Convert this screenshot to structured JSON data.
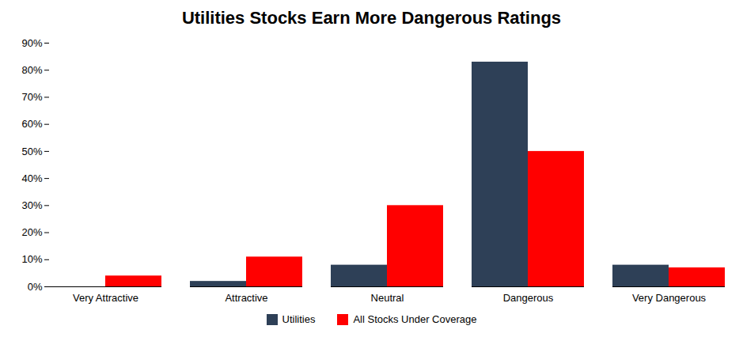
{
  "chart_data": {
    "type": "bar",
    "title": "Utilities Stocks Earn More Dangerous Ratings",
    "categories": [
      "Very Attractive",
      "Attractive",
      "Neutral",
      "Dangerous",
      "Very Dangerous"
    ],
    "series": [
      {
        "name": "Utilities",
        "color": "#2E4057",
        "values": [
          0.0,
          0.02,
          0.08,
          0.83,
          0.08
        ]
      },
      {
        "name": "All Stocks Under Coverage",
        "color": "#FF0000",
        "values": [
          0.04,
          0.11,
          0.3,
          0.5,
          0.07
        ]
      }
    ],
    "ylim": [
      0,
      0.9
    ],
    "yticks": [
      {
        "value": 0.0,
        "label": "0%"
      },
      {
        "value": 0.1,
        "label": "10%"
      },
      {
        "value": 0.2,
        "label": "20%"
      },
      {
        "value": 0.3,
        "label": "30%"
      },
      {
        "value": 0.4,
        "label": "40%"
      },
      {
        "value": 0.5,
        "label": "50%"
      },
      {
        "value": 0.6,
        "label": "60%"
      },
      {
        "value": 0.7,
        "label": "70%"
      },
      {
        "value": 0.8,
        "label": "80%"
      },
      {
        "value": 0.9,
        "label": "90%"
      }
    ],
    "grid": false,
    "legend": "bottom"
  }
}
